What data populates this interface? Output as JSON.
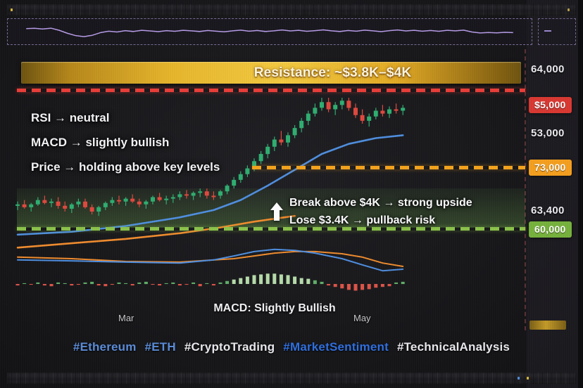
{
  "hashtags": [
    {
      "text": "#Ethereum",
      "color": "#5b8dd9"
    },
    {
      "text": "#ETH",
      "color": "#5b8dd9"
    },
    {
      "text": "#CryptoTrading",
      "color": "#e9e9ee"
    },
    {
      "text": "#MarketSentiment",
      "color": "#2f6fe0"
    },
    {
      "text": "#TechnicalAnalysis",
      "color": "#e9e9ee"
    }
  ],
  "colors": {
    "background": "#17171a",
    "candle_up": "#2fae71",
    "candle_down": "#e0483e",
    "ma_fast": "#4f8fe0",
    "ma_slow": "#f08c2e",
    "hist_up": "#5fae68",
    "hist_strong": "#b7dcab",
    "hist_down": "#de5347",
    "resistance_line": "#ea3d38",
    "mid_line": "#f5a31c",
    "support_line": "#8bc34a",
    "banner_gold": "#edbb2e",
    "sparkline": "#b79ce8"
  },
  "chart_data": [
    {
      "type": "line",
      "name": "top-sparkline",
      "values": [
        0.7,
        0.72,
        0.68,
        0.73,
        0.6,
        0.42,
        0.28,
        0.22,
        0.3,
        0.46,
        0.55,
        0.5,
        0.58,
        0.53,
        0.6,
        0.56,
        0.52,
        0.58,
        0.54,
        0.6,
        0.57,
        0.53,
        0.59,
        0.55,
        0.51,
        0.57,
        0.61,
        0.55,
        0.59,
        0.53,
        0.57,
        0.62,
        0.56,
        0.6,
        0.54,
        0.58,
        0.63,
        0.57,
        0.53,
        0.59,
        0.55,
        0.61,
        0.57,
        0.52,
        0.58,
        0.62,
        0.56,
        0.6,
        0.55,
        0.59,
        0.54,
        0.6,
        0.57,
        0.61,
        0.5,
        0.44,
        0.47,
        0.45,
        0.48,
        0.46
      ]
    },
    {
      "type": "candlestick",
      "name": "eth-price-chart",
      "x_tick_labels": [
        "Mar",
        "May"
      ],
      "annotations": {
        "banner": "Resistance: ~$3.8K–$4K",
        "rsi": "RSI → neutral",
        "macd": "MACD → slightly bullish",
        "price": "Price → holding above key levels",
        "breakout": "Break above $4K → strong upside",
        "pullback": "Lose $3.4K → pullback risk"
      },
      "y_axis_labels": [
        {
          "text": "64,000",
          "style": "plain"
        },
        {
          "text": "$5,000",
          "style": "badge",
          "color": "#da3832"
        },
        {
          "text": "53,000",
          "style": "plain"
        },
        {
          "text": "73,000",
          "style": "badge",
          "color": "#f59f1e"
        },
        {
          "text": "63,400",
          "style": "plain"
        },
        {
          "text": "60,000",
          "style": "badge",
          "color": "#76b23c"
        }
      ],
      "levels": [
        {
          "role": "resistance",
          "label": "$5,000",
          "color": "#ea3d38",
          "style": "dashed"
        },
        {
          "role": "mid",
          "label": "73,000",
          "color": "#f5a31c",
          "style": "dashed"
        },
        {
          "role": "support",
          "label": "60,000",
          "color": "#8bc34a",
          "style": "dashed"
        }
      ],
      "candles_format": "[open, high, low, close] in relative price units",
      "candles": [
        [
          24,
          27,
          21,
          25
        ],
        [
          25,
          28,
          22,
          23
        ],
        [
          23,
          26,
          20,
          25
        ],
        [
          25,
          30,
          24,
          28
        ],
        [
          28,
          31,
          25,
          26
        ],
        [
          26,
          29,
          23,
          27
        ],
        [
          27,
          30,
          22,
          24
        ],
        [
          24,
          27,
          20,
          22
        ],
        [
          22,
          26,
          19,
          25
        ],
        [
          25,
          29,
          23,
          27
        ],
        [
          27,
          29,
          22,
          23
        ],
        [
          23,
          25,
          18,
          20
        ],
        [
          20,
          24,
          17,
          23
        ],
        [
          23,
          27,
          21,
          26
        ],
        [
          26,
          30,
          24,
          28
        ],
        [
          28,
          31,
          25,
          27
        ],
        [
          27,
          30,
          24,
          29
        ],
        [
          29,
          32,
          26,
          27
        ],
        [
          27,
          29,
          23,
          25
        ],
        [
          25,
          28,
          22,
          27
        ],
        [
          27,
          31,
          25,
          30
        ],
        [
          30,
          33,
          27,
          28
        ],
        [
          28,
          31,
          25,
          29
        ],
        [
          29,
          32,
          26,
          30
        ],
        [
          30,
          34,
          28,
          32
        ],
        [
          32,
          35,
          29,
          31
        ],
        [
          31,
          34,
          28,
          33
        ],
        [
          33,
          36,
          30,
          34
        ],
        [
          34,
          36,
          29,
          31
        ],
        [
          31,
          34,
          28,
          30
        ],
        [
          31,
          35,
          29,
          34
        ],
        [
          34,
          39,
          32,
          38
        ],
        [
          38,
          44,
          36,
          42
        ],
        [
          42,
          48,
          40,
          46
        ],
        [
          46,
          52,
          44,
          50
        ],
        [
          50,
          57,
          48,
          55
        ],
        [
          55,
          62,
          53,
          60
        ],
        [
          60,
          67,
          57,
          65
        ],
        [
          65,
          72,
          62,
          70
        ],
        [
          70,
          76,
          66,
          68
        ],
        [
          68,
          75,
          65,
          73
        ],
        [
          73,
          80,
          71,
          78
        ],
        [
          78,
          85,
          75,
          83
        ],
        [
          83,
          90,
          80,
          88
        ],
        [
          88,
          95,
          86,
          92
        ],
        [
          92,
          99,
          90,
          96
        ],
        [
          96,
          99,
          89,
          91
        ],
        [
          91,
          96,
          87,
          94
        ],
        [
          94,
          99,
          91,
          97
        ],
        [
          97,
          99,
          90,
          92
        ],
        [
          92,
          95,
          85,
          87
        ],
        [
          87,
          91,
          81,
          83
        ],
        [
          83,
          88,
          79,
          86
        ],
        [
          86,
          92,
          84,
          90
        ],
        [
          90,
          94,
          86,
          88
        ],
        [
          88,
          93,
          85,
          91
        ],
        [
          91,
          95,
          88,
          90
        ],
        [
          90,
          94,
          87,
          92
        ]
      ],
      "ma_fast_blue": [
        [
          0,
          4
        ],
        [
          8,
          6
        ],
        [
          16,
          10
        ],
        [
          24,
          16
        ],
        [
          29,
          21
        ],
        [
          33,
          28
        ],
        [
          37,
          38
        ],
        [
          41,
          49
        ],
        [
          45,
          60
        ],
        [
          49,
          67
        ],
        [
          53,
          71
        ],
        [
          57,
          73
        ]
      ],
      "ma_slow_orange": [
        [
          0,
          -5
        ],
        [
          8,
          -2
        ],
        [
          16,
          1
        ],
        [
          24,
          5
        ],
        [
          30,
          9
        ],
        [
          35,
          13
        ],
        [
          41,
          17
        ]
      ]
    },
    {
      "type": "line+bar",
      "name": "macd",
      "caption": "MACD: Slightly Bullish",
      "macd_line": [
        [
          0,
          5.5
        ],
        [
          8,
          5.2
        ],
        [
          16,
          4.8
        ],
        [
          24,
          4.5
        ],
        [
          29,
          5.5
        ],
        [
          32,
          6.8
        ],
        [
          35,
          8.2
        ],
        [
          38,
          8.9
        ],
        [
          41,
          8.6
        ],
        [
          44,
          7.7
        ],
        [
          48,
          5.9
        ],
        [
          51,
          3.9
        ],
        [
          54,
          2.0
        ],
        [
          57,
          2.5
        ]
      ],
      "signal_line": [
        [
          0,
          6.4
        ],
        [
          8,
          5.9
        ],
        [
          16,
          5.0
        ],
        [
          24,
          4.8
        ],
        [
          32,
          5.9
        ],
        [
          35,
          6.8
        ],
        [
          38,
          7.7
        ],
        [
          41,
          8.2
        ],
        [
          44,
          8.2
        ],
        [
          48,
          7.5
        ],
        [
          51,
          6.4
        ],
        [
          54,
          4.5
        ],
        [
          57,
          3.4
        ]
      ],
      "histogram": [
        -2,
        1,
        -1,
        2,
        -2,
        -3,
        2,
        1,
        -2,
        -1,
        2,
        3,
        -2,
        -3,
        -1,
        2,
        1,
        -2,
        2,
        3,
        -1,
        -2,
        1,
        2,
        -2,
        -1,
        2,
        -3,
        1,
        -2,
        2,
        4,
        6,
        8,
        10,
        12,
        13,
        14,
        14,
        13,
        12,
        10,
        8,
        7,
        5,
        3,
        -2,
        -4,
        -6,
        -8,
        -9,
        -8,
        -7,
        -5,
        -4,
        -3,
        2,
        3
      ]
    }
  ]
}
